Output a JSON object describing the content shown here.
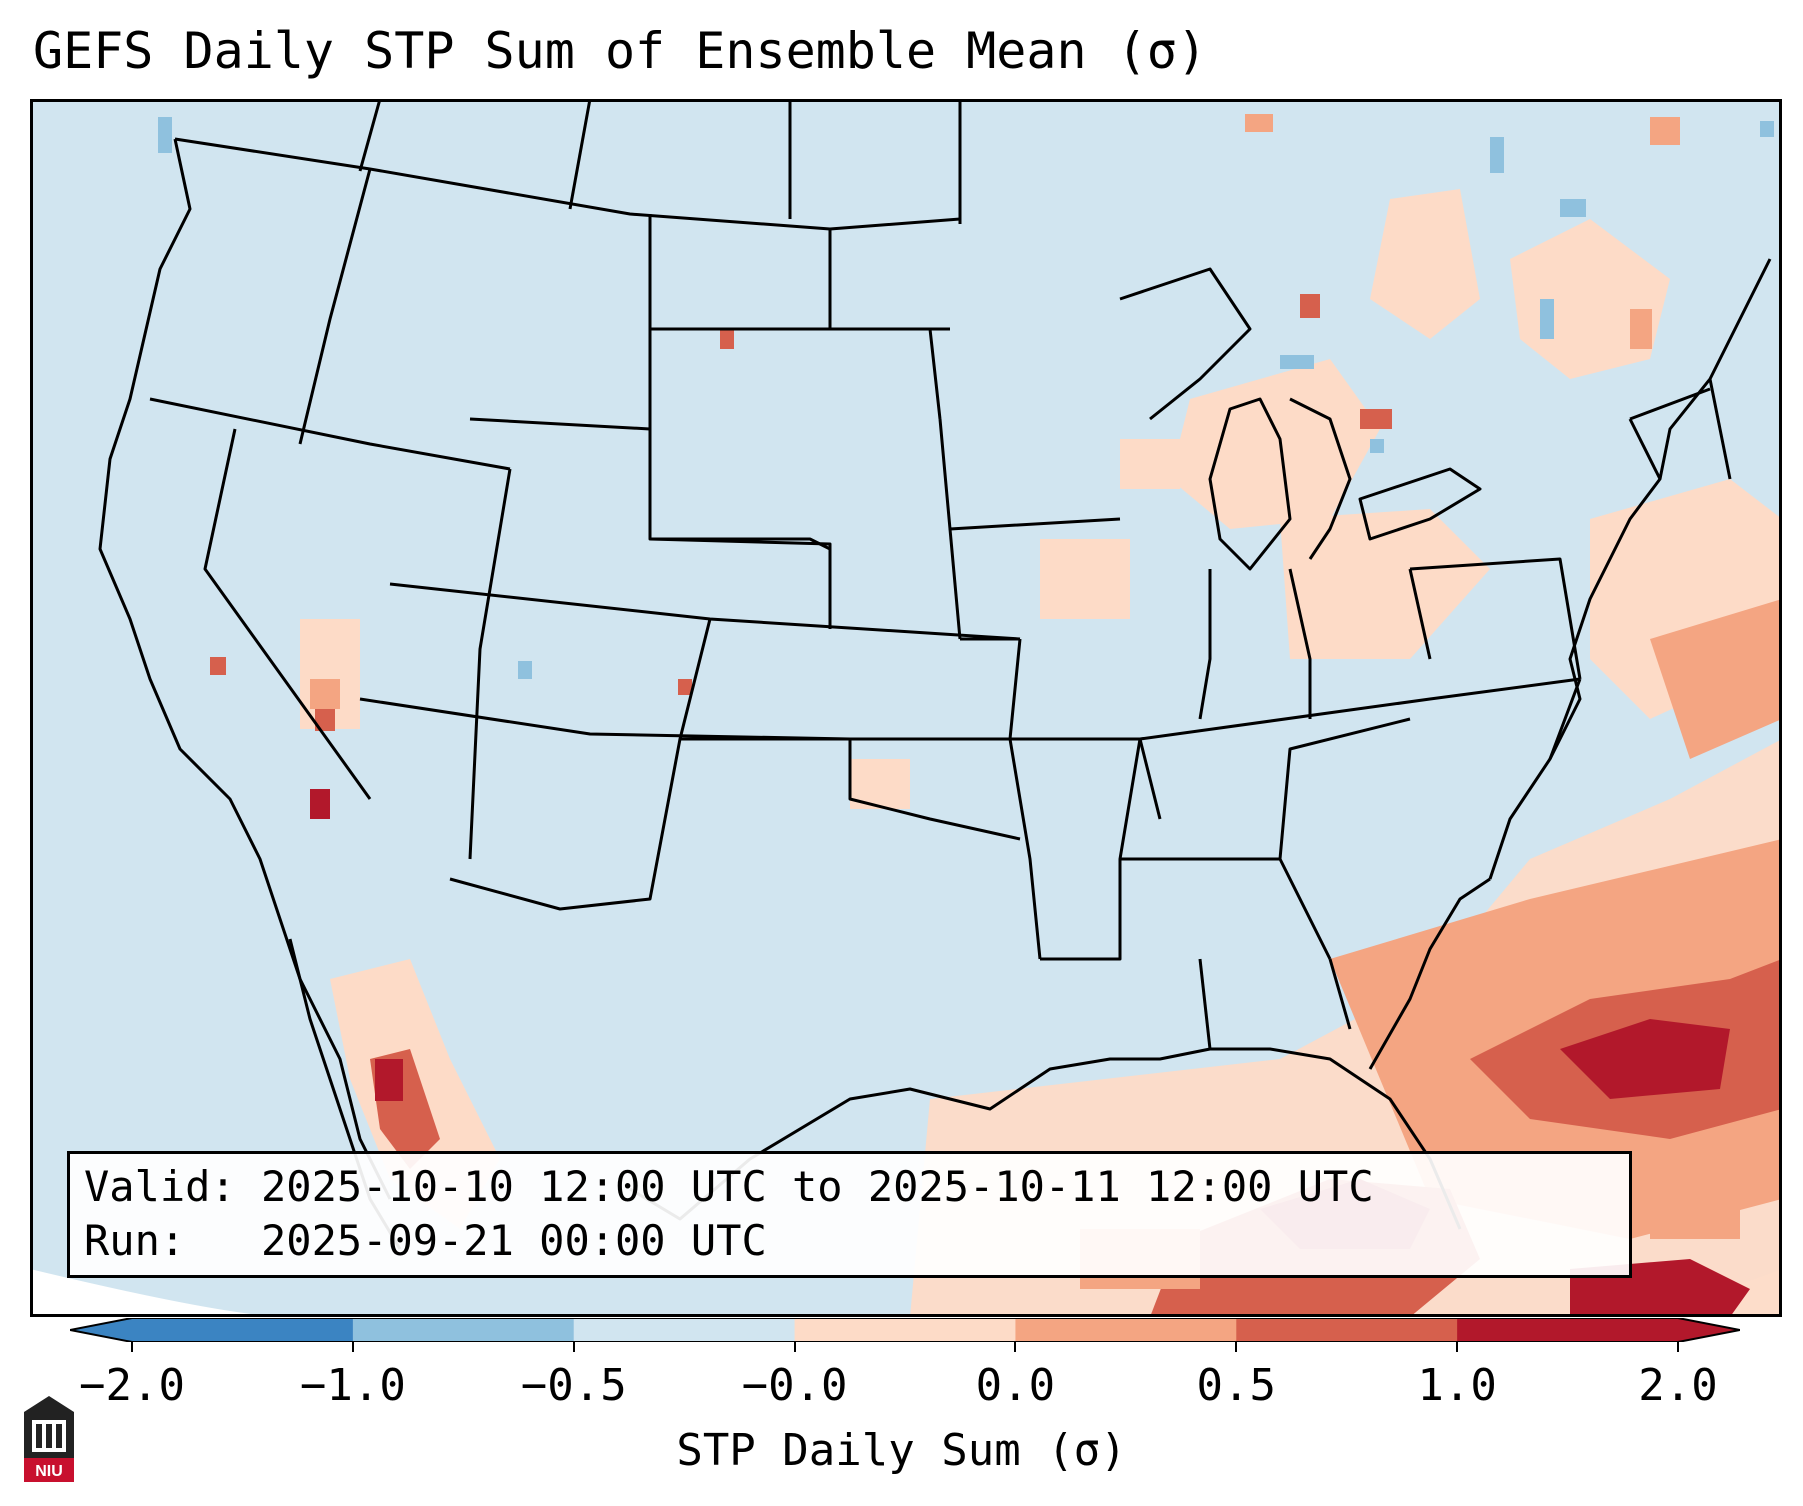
{
  "title": "GEFS Daily STP Sum of Ensemble Mean (σ)",
  "info": {
    "valid_label": "Valid:",
    "valid_value": "2025-10-10 12:00 UTC to 2025-10-11 12:00 UTC",
    "run_label": "Run:",
    "run_value": "2025-09-21 00:00 UTC"
  },
  "colorbar": {
    "label": "STP Daily Sum (σ)",
    "ticks": [
      "−2.0",
      "−1.0",
      "−0.5",
      "−0.0",
      "0.0",
      "0.5",
      "1.0",
      "2.0"
    ],
    "colors": [
      "#3b84c2",
      "#8fc1de",
      "#d1e5f0",
      "#f7f7f7",
      "#fddbc7",
      "#f4a582",
      "#d6604d",
      "#b2182b"
    ],
    "extend": "both"
  },
  "logo": {
    "text": "NIU"
  },
  "palette": {
    "background_field": "#d1e5f0",
    "light_pos": "#fddbc7",
    "mid_pos": "#f4a582",
    "strong_pos": "#d6604d",
    "max_pos": "#b2182b",
    "light_neg": "#8fc1de",
    "border": "#000000"
  }
}
